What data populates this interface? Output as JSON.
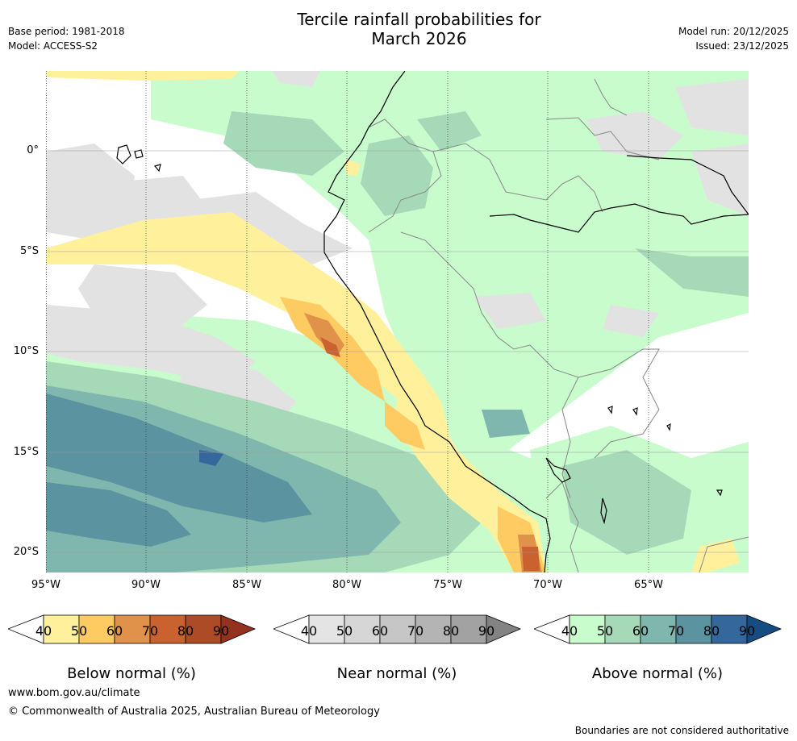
{
  "title_line1": "Tercile rainfall probabilities for",
  "title_line2": "March 2026",
  "base_period": "Base period: 1981-2018",
  "model": "Model: ACCESS-S2",
  "model_run": "Model run: 20/12/2025",
  "issued": "Issued: 23/12/2025",
  "map": {
    "lat_labels": [
      "0°",
      "5°S",
      "10°S",
      "15°S",
      "20°S"
    ],
    "lon_labels": [
      "95°W",
      "90°W",
      "85°W",
      "80°W",
      "75°W",
      "70°W",
      "65°W"
    ]
  },
  "colorbars": [
    {
      "title": "Below normal (%)",
      "ticks": [
        "40",
        "50",
        "60",
        "70",
        "80",
        "90"
      ],
      "colors": [
        "#fff19b",
        "#fecb63",
        "#e0914a",
        "#c9622f",
        "#ad4b26",
        "#92321f"
      ]
    },
    {
      "title": "Near normal (%)",
      "ticks": [
        "40",
        "50",
        "60",
        "70",
        "80",
        "90"
      ],
      "colors": [
        "#e4e4e4",
        "#d6d6d6",
        "#c6c6c6",
        "#b4b4b4",
        "#a2a2a2",
        "#838383"
      ]
    },
    {
      "title": "Above normal (%)",
      "ticks": [
        "40",
        "50",
        "60",
        "70",
        "80",
        "90"
      ],
      "colors": [
        "#c9fccc",
        "#a6d9b8",
        "#7fb7ae",
        "#5b93a0",
        "#34679c",
        "#154c82"
      ]
    }
  ],
  "website": "www.bom.gov.au/climate",
  "copyright": "© Commonwealth of Australia 2025, Australian Bureau of Meteorology",
  "disclaimer": "Boundaries are not considered authoritative"
}
